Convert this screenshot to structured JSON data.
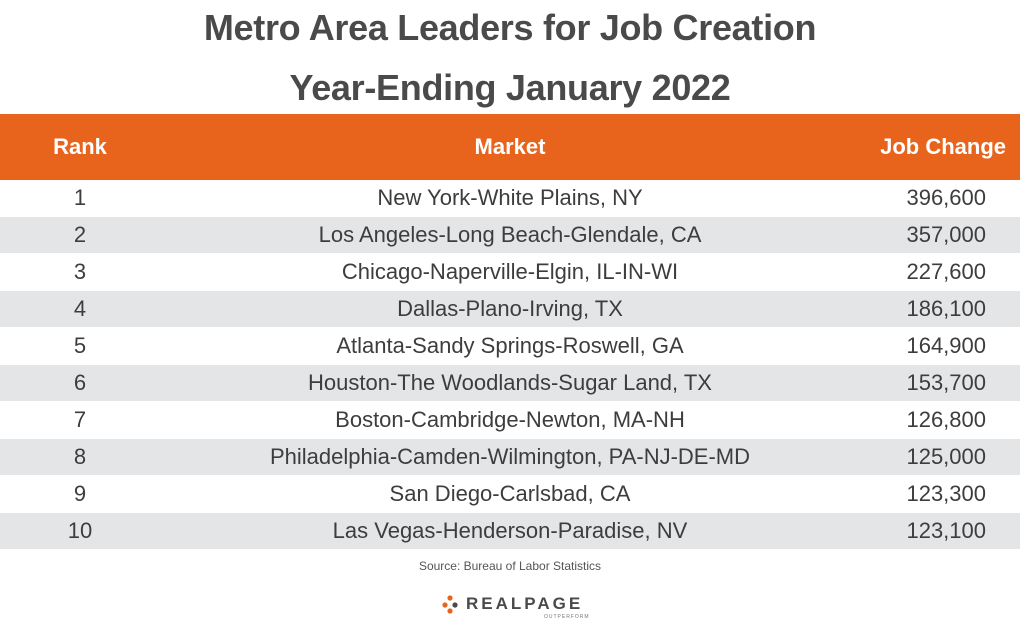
{
  "title_line1": "Metro Area Leaders for Job Creation",
  "title_line2": "Year-Ending January 2022",
  "header": {
    "rank": "Rank",
    "market": "Market",
    "change": "Job Change"
  },
  "rows": [
    {
      "rank": "1",
      "market": "New York-White Plains, NY",
      "change": "396,600"
    },
    {
      "rank": "2",
      "market": "Los Angeles-Long Beach-Glendale, CA",
      "change": "357,000"
    },
    {
      "rank": "3",
      "market": "Chicago-Naperville-Elgin, IL-IN-WI",
      "change": "227,600"
    },
    {
      "rank": "4",
      "market": "Dallas-Plano-Irving, TX",
      "change": "186,100"
    },
    {
      "rank": "5",
      "market": "Atlanta-Sandy Springs-Roswell, GA",
      "change": "164,900"
    },
    {
      "rank": "6",
      "market": "Houston-The Woodlands-Sugar Land, TX",
      "change": "153,700"
    },
    {
      "rank": "7",
      "market": "Boston-Cambridge-Newton, MA-NH",
      "change": "126,800"
    },
    {
      "rank": "8",
      "market": "Philadelphia-Camden-Wilmington, PA-NJ-DE-MD",
      "change": "125,000"
    },
    {
      "rank": "9",
      "market": "San Diego-Carlsbad, CA",
      "change": "123,300"
    },
    {
      "rank": "10",
      "market": "Las Vegas-Henderson-Paradise, NV",
      "change": "123,100"
    }
  ],
  "source": "Source: Bureau of Labor Statistics",
  "logo": {
    "name": "REALPAGE",
    "tagline": "OUTPERFORM",
    "icon": "realpage-dots-icon"
  },
  "colors": {
    "header_bg": "#e8641c",
    "alt_row_bg": "#e4e5e7",
    "title_text": "#4a4a4a"
  },
  "chart_data": {
    "type": "table",
    "title": "Metro Area Leaders for Job Creation",
    "subtitle": "Year-Ending January 2022",
    "columns": [
      "Rank",
      "Market",
      "Job Change"
    ],
    "categories": [
      "New York-White Plains, NY",
      "Los Angeles-Long Beach-Glendale, CA",
      "Chicago-Naperville-Elgin, IL-IN-WI",
      "Dallas-Plano-Irving, TX",
      "Atlanta-Sandy Springs-Roswell, GA",
      "Houston-The Woodlands-Sugar Land, TX",
      "Boston-Cambridge-Newton, MA-NH",
      "Philadelphia-Camden-Wilmington, PA-NJ-DE-MD",
      "San Diego-Carlsbad, CA",
      "Las Vegas-Henderson-Paradise, NV"
    ],
    "values": [
      396600,
      357000,
      227600,
      186100,
      164900,
      153700,
      126800,
      125000,
      123300,
      123100
    ]
  }
}
